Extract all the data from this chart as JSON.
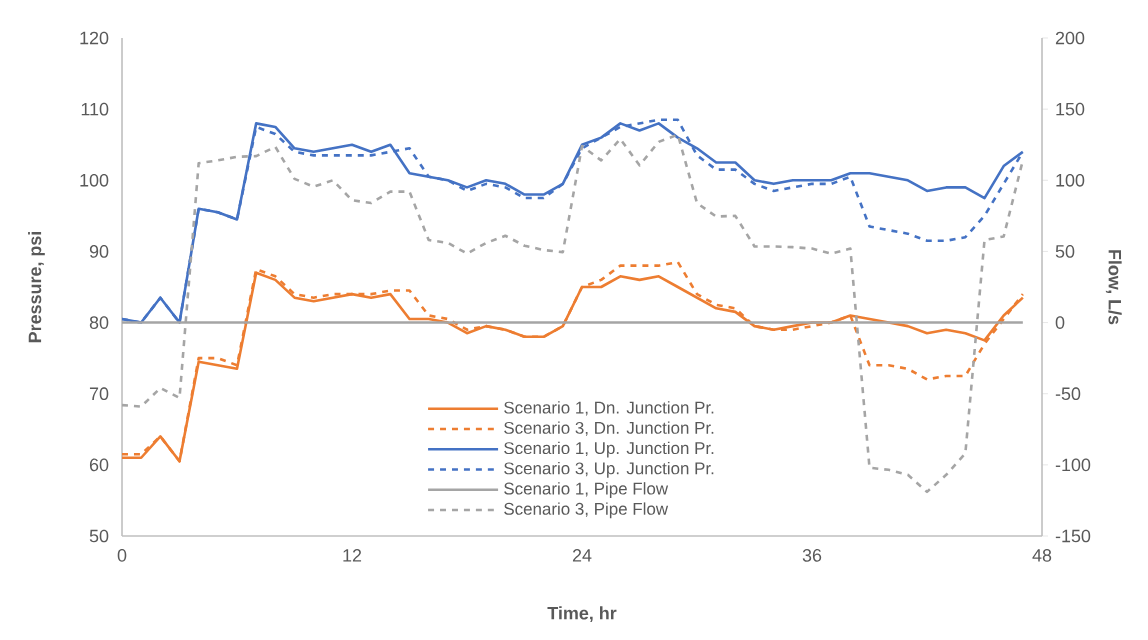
{
  "chart_data": {
    "type": "line",
    "xlabel": "Time, hr",
    "ylabel": "Pressure, psi",
    "y2label": "Flow, L/s",
    "x": [
      0,
      1,
      2,
      3,
      4,
      5,
      6,
      7,
      8,
      9,
      10,
      11,
      12,
      13,
      14,
      15,
      16,
      17,
      18,
      19,
      20,
      21,
      22,
      23,
      24,
      25,
      26,
      27,
      28,
      29,
      30,
      31,
      32,
      33,
      34,
      35,
      36,
      37,
      38,
      39,
      40,
      41,
      42,
      43,
      44,
      45,
      46,
      47
    ],
    "xlim": [
      0,
      48
    ],
    "xticks": [
      0,
      12,
      24,
      36,
      48
    ],
    "ylim": [
      50,
      120
    ],
    "yticks": [
      50,
      60,
      70,
      80,
      90,
      100,
      110,
      120
    ],
    "y2lim": [
      -150,
      200
    ],
    "y2ticks": [
      -150,
      -100,
      -50,
      0,
      50,
      100,
      150,
      200
    ],
    "legend": "bottom",
    "series": [
      {
        "name": "Scenario 1, Dn. Junction Pr.",
        "color": "#ed7d31",
        "line_style": "solid",
        "values": [
          61,
          61,
          64,
          60.5,
          74.5,
          74,
          73.5,
          87,
          86,
          83.5,
          83,
          83.5,
          84,
          83.5,
          84,
          80.5,
          80.5,
          80,
          78.5,
          79.5,
          79,
          78,
          78,
          79.5,
          85,
          85,
          86.5,
          86,
          86.5,
          85,
          83.5,
          82,
          81.5,
          79.5,
          79,
          79.5,
          80,
          80,
          81,
          80.5,
          80,
          79.5,
          78.5,
          79,
          78.5,
          77.5,
          81,
          83.5
        ]
      },
      {
        "name": "Scenario 3, Dn. Junction Pr.",
        "color": "#ed7d31",
        "line_style": "dashed",
        "values": [
          61.5,
          61.5,
          64,
          60.5,
          75,
          75,
          74,
          87.5,
          86.5,
          84,
          83.5,
          84,
          84,
          84,
          84.5,
          84.5,
          81,
          80.5,
          79,
          79.5,
          79,
          78,
          78,
          79.5,
          85,
          86,
          88,
          88,
          88,
          88.5,
          84,
          82.5,
          82,
          79.5,
          79,
          79,
          79.5,
          80,
          81,
          74,
          74,
          73.5,
          72,
          72.5,
          72.5,
          77,
          80.5,
          84
        ]
      },
      {
        "name": "Scenario 1, Up. Junction Pr.",
        "color": "#4472c4",
        "line_style": "solid",
        "values": [
          80.5,
          80,
          83.5,
          80,
          96,
          95.5,
          94.5,
          108,
          107.5,
          104.5,
          104,
          104.5,
          105,
          104,
          105,
          101,
          100.5,
          100,
          99,
          100,
          99.5,
          98,
          98,
          99.5,
          105,
          106,
          108,
          107,
          108,
          106,
          104.5,
          102.5,
          102.5,
          100,
          99.5,
          100,
          100,
          100,
          101,
          101,
          100.5,
          100,
          98.5,
          99,
          99,
          97.5,
          102,
          104
        ]
      },
      {
        "name": "Scenario 3, Up. Junction Pr.",
        "color": "#4472c4",
        "line_style": "dashed",
        "values": [
          80.5,
          80,
          83.5,
          80,
          96,
          95.5,
          94.5,
          107.5,
          106.5,
          104,
          103.5,
          103.5,
          103.5,
          103.5,
          104,
          104.5,
          100.5,
          100,
          98.5,
          99.5,
          99,
          97.5,
          97.5,
          99.5,
          104.5,
          106,
          107.5,
          108,
          108.5,
          108.5,
          103.5,
          101.5,
          101.5,
          99.5,
          98.5,
          99,
          99.5,
          99.5,
          100.5,
          93.5,
          93,
          92.5,
          91.5,
          91.5,
          92,
          95,
          99.5,
          104
        ]
      },
      {
        "name": "Scenario 1, Pipe Flow",
        "color": "#a5a5a5",
        "line_style": "solid",
        "axis": "y2",
        "values": [
          0,
          0,
          0,
          0,
          0,
          0,
          0,
          0,
          0,
          0,
          0,
          0,
          0,
          0,
          0,
          0,
          0,
          0,
          0,
          0,
          0,
          0,
          0,
          0,
          0,
          0,
          0,
          0,
          0,
          0,
          0,
          0,
          0,
          0,
          0,
          0,
          0,
          0,
          0,
          0,
          0,
          0,
          0,
          0,
          0,
          0,
          0,
          0
        ]
      },
      {
        "name": "Scenario 3, Pipe Flow",
        "color": "#a5a5a5",
        "line_style": "dashed",
        "axis": "y2",
        "values": [
          -58,
          -59,
          -46,
          -53,
          112,
          114,
          116.5,
          117,
          123.5,
          101,
          95.5,
          100,
          86,
          84,
          92,
          92,
          58,
          56,
          48.5,
          56,
          61,
          54,
          51,
          49.5,
          124,
          114,
          129,
          110.5,
          127,
          132,
          84,
          74.5,
          75,
          53.5,
          53.5,
          53,
          52,
          48.5,
          52,
          -102,
          -103.5,
          -107,
          -119,
          -107,
          -92,
          58,
          60.5,
          114
        ]
      }
    ]
  }
}
